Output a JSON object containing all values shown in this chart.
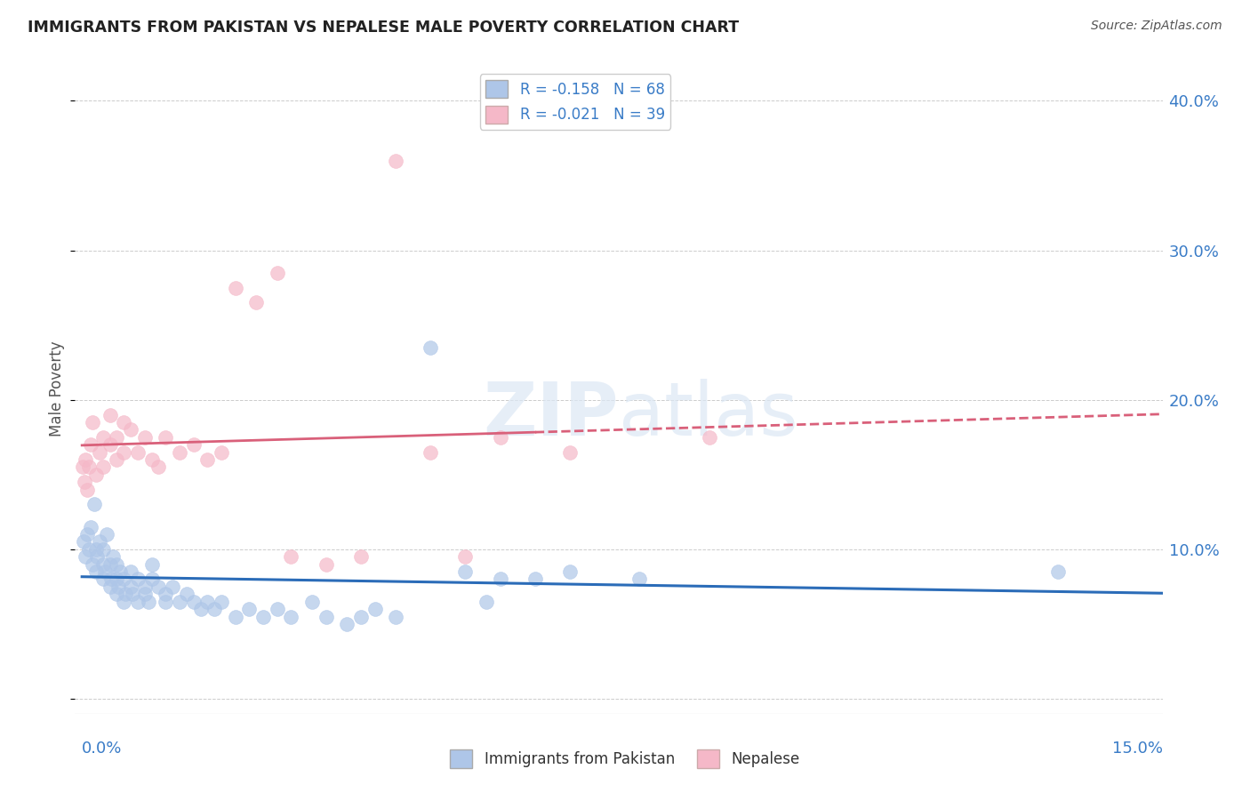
{
  "title": "IMMIGRANTS FROM PAKISTAN VS NEPALESE MALE POVERTY CORRELATION CHART",
  "source": "Source: ZipAtlas.com",
  "ylabel": "Male Poverty",
  "y_ticks": [
    0.0,
    0.1,
    0.2,
    0.3,
    0.4
  ],
  "y_tick_labels": [
    "",
    "10.0%",
    "20.0%",
    "30.0%",
    "40.0%"
  ],
  "x_min": -0.001,
  "x_max": 0.155,
  "y_min": -0.01,
  "y_max": 0.425,
  "blue_color": "#aec6e8",
  "pink_color": "#f5b8c8",
  "blue_line_color": "#2b6cb8",
  "pink_line_color": "#d9607a",
  "blue_r": -0.158,
  "blue_n": 68,
  "pink_r": -0.021,
  "pink_n": 39,
  "pakistan_x": [
    0.0002,
    0.0005,
    0.0008,
    0.001,
    0.0012,
    0.0015,
    0.0018,
    0.002,
    0.002,
    0.0022,
    0.0025,
    0.003,
    0.003,
    0.003,
    0.0033,
    0.0035,
    0.004,
    0.004,
    0.0042,
    0.0045,
    0.005,
    0.005,
    0.005,
    0.0052,
    0.0055,
    0.006,
    0.006,
    0.0062,
    0.007,
    0.007,
    0.0072,
    0.008,
    0.008,
    0.009,
    0.009,
    0.0095,
    0.01,
    0.01,
    0.011,
    0.012,
    0.012,
    0.013,
    0.014,
    0.015,
    0.016,
    0.017,
    0.018,
    0.019,
    0.02,
    0.022,
    0.024,
    0.026,
    0.028,
    0.03,
    0.033,
    0.035,
    0.038,
    0.04,
    0.042,
    0.045,
    0.05,
    0.055,
    0.058,
    0.06,
    0.065,
    0.07,
    0.08,
    0.14
  ],
  "pakistan_y": [
    0.105,
    0.095,
    0.11,
    0.1,
    0.115,
    0.09,
    0.13,
    0.085,
    0.1,
    0.095,
    0.105,
    0.08,
    0.09,
    0.1,
    0.085,
    0.11,
    0.075,
    0.09,
    0.08,
    0.095,
    0.07,
    0.08,
    0.09,
    0.075,
    0.085,
    0.065,
    0.08,
    0.07,
    0.075,
    0.085,
    0.07,
    0.065,
    0.08,
    0.07,
    0.075,
    0.065,
    0.08,
    0.09,
    0.075,
    0.065,
    0.07,
    0.075,
    0.065,
    0.07,
    0.065,
    0.06,
    0.065,
    0.06,
    0.065,
    0.055,
    0.06,
    0.055,
    0.06,
    0.055,
    0.065,
    0.055,
    0.05,
    0.055,
    0.06,
    0.055,
    0.235,
    0.085,
    0.065,
    0.08,
    0.08,
    0.085,
    0.08,
    0.085
  ],
  "nepalese_x": [
    0.0001,
    0.0003,
    0.0005,
    0.0008,
    0.001,
    0.0012,
    0.0015,
    0.002,
    0.0025,
    0.003,
    0.003,
    0.004,
    0.004,
    0.005,
    0.005,
    0.006,
    0.006,
    0.007,
    0.008,
    0.009,
    0.01,
    0.011,
    0.012,
    0.014,
    0.016,
    0.018,
    0.02,
    0.022,
    0.025,
    0.028,
    0.03,
    0.035,
    0.04,
    0.045,
    0.05,
    0.055,
    0.06,
    0.07,
    0.09
  ],
  "nepalese_y": [
    0.155,
    0.145,
    0.16,
    0.14,
    0.155,
    0.17,
    0.185,
    0.15,
    0.165,
    0.155,
    0.175,
    0.17,
    0.19,
    0.16,
    0.175,
    0.165,
    0.185,
    0.18,
    0.165,
    0.175,
    0.16,
    0.155,
    0.175,
    0.165,
    0.17,
    0.16,
    0.165,
    0.275,
    0.265,
    0.285,
    0.095,
    0.09,
    0.095,
    0.36,
    0.165,
    0.095,
    0.175,
    0.165,
    0.175
  ]
}
